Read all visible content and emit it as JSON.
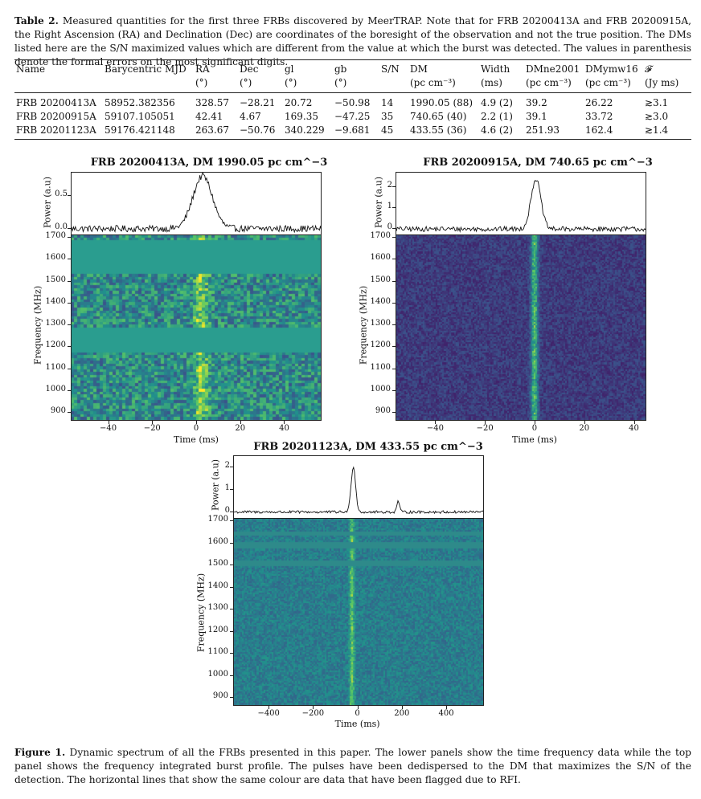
{
  "table": {
    "caption_label": "Table 2.",
    "caption_text": " Measured quantities for the first three FRBs discovered by MeerTRAP. Note that for FRB 20200413A and FRB 20200915A, the Right Ascension (RA) and Declination (Dec) are coordinates of the boresight of the observation and not the true position. The DMs listed here are the S/N maximized values which are different from the value at which the burst was detected. The values in parenthesis denote the formal errors on the most significant digits.",
    "headers": [
      "Name",
      "Barycentric MJD",
      "RA",
      "Dec",
      "gl",
      "gb",
      "S/N",
      "DM",
      "Width",
      "DMne2001",
      "DMymw16",
      "𝓕"
    ],
    "units": [
      "",
      "",
      "(°)",
      "(°)",
      "(°)",
      "(°)",
      "",
      "(pc cm⁻³)",
      "(ms)",
      "(pc cm⁻³)",
      "(pc cm⁻³)",
      "(Jy ms)"
    ],
    "rows": [
      [
        "FRB 20200413A",
        "58952.382356",
        "328.57",
        "−28.21",
        "20.72",
        "−50.98",
        "14",
        "1990.05 (88)",
        "4.9 (2)",
        "39.2",
        "26.22",
        "≳3.1"
      ],
      [
        "FRB 20200915A",
        "59107.105051",
        "42.41",
        "4.67",
        "169.35",
        "−47.25",
        "35",
        "740.65 (40)",
        "2.2 (1)",
        "39.1",
        "33.72",
        "≳3.0"
      ],
      [
        "FRB 20201123A",
        "59176.421148",
        "263.67",
        "−50.76",
        "340.229",
        "−9.681",
        "45",
        "433.55 (36)",
        "4.6 (2)",
        "251.93",
        "162.4",
        "≳1.4"
      ]
    ]
  },
  "figure": {
    "caption_label": "Figure 1.",
    "caption_text": " Dynamic spectrum of all the FRBs presented in this paper. The lower panels show the time frequency data while the top panel shows the frequency integrated burst profile. The pulses have been dedispersed to the DM that maximizes the S/N of the detection. The horizontal lines that show the same colour are data that have been flagged due to RFI."
  },
  "chart_data": [
    {
      "type": "heatmap",
      "title": "FRB 20200413A, DM 1990.05 pc cm^−3",
      "profile_ylabel": "Power (a.u)",
      "profile_yticks": [
        "0.0",
        "0.5"
      ],
      "ylabel": "Frequency (MHz)",
      "xlabel": "Time (ms)",
      "xticks": [
        -40,
        -20,
        0,
        20,
        40
      ],
      "yticks": [
        900,
        1000,
        1100,
        1200,
        1300,
        1400,
        1500,
        1600,
        1700
      ],
      "xlim": [
        -57,
        57
      ],
      "ylim": [
        860,
        1712
      ],
      "profile_ylim": [
        -0.1,
        0.85
      ],
      "burst_time": 2.6,
      "burst_peak": 0.8,
      "burst_width": 4.9,
      "noise_level": 0.05,
      "colormap": "viridis",
      "flagged_color": "#2a9d8f",
      "flagged_bands": [
        [
          1165,
          1285
        ],
        [
          1530,
          1680
        ]
      ]
    },
    {
      "type": "heatmap",
      "title": "FRB 20200915A, DM 740.65 pc cm^−3",
      "profile_ylabel": "Power (a.u)",
      "profile_yticks": [
        "0",
        "1",
        "2"
      ],
      "ylabel": "Frequency (MHz)",
      "xlabel": "Time (ms)",
      "xticks": [
        -40,
        -20,
        0,
        20,
        40
      ],
      "yticks": [
        900,
        1000,
        1100,
        1200,
        1300,
        1400,
        1500,
        1600,
        1700
      ],
      "xlim": [
        -56,
        45
      ],
      "ylim": [
        860,
        1712
      ],
      "profile_ylim": [
        -0.3,
        2.7
      ],
      "burst_time": 0.2,
      "burst_peak": 2.4,
      "burst_width": 2.2,
      "noise_level": 0.12,
      "colormap": "viridis",
      "flagged_color": "#3b4d8f",
      "flagged_bands": []
    },
    {
      "type": "heatmap",
      "title": "FRB 20201123A, DM 433.55 pc cm^−3",
      "profile_ylabel": "Power (a.u)",
      "profile_yticks": [
        "0",
        "1",
        "2"
      ],
      "ylabel": "Frequency (MHz)",
      "xlabel": "Time (ms)",
      "xticks": [
        -400,
        -200,
        0,
        200,
        400
      ],
      "yticks": [
        900,
        1000,
        1100,
        1200,
        1300,
        1400,
        1500,
        1600,
        1700
      ],
      "xlim": [
        -560,
        570
      ],
      "ylim": [
        860,
        1712
      ],
      "profile_ylim": [
        -0.3,
        2.5
      ],
      "burst_time": -22,
      "burst_peak": 2.05,
      "burst_width": 4.6,
      "noise_level": 0.06,
      "colormap": "viridis",
      "flagged_color": "#2e8a8a",
      "flagged_bands": [
        [
          1575,
          1600
        ]
      ]
    }
  ]
}
